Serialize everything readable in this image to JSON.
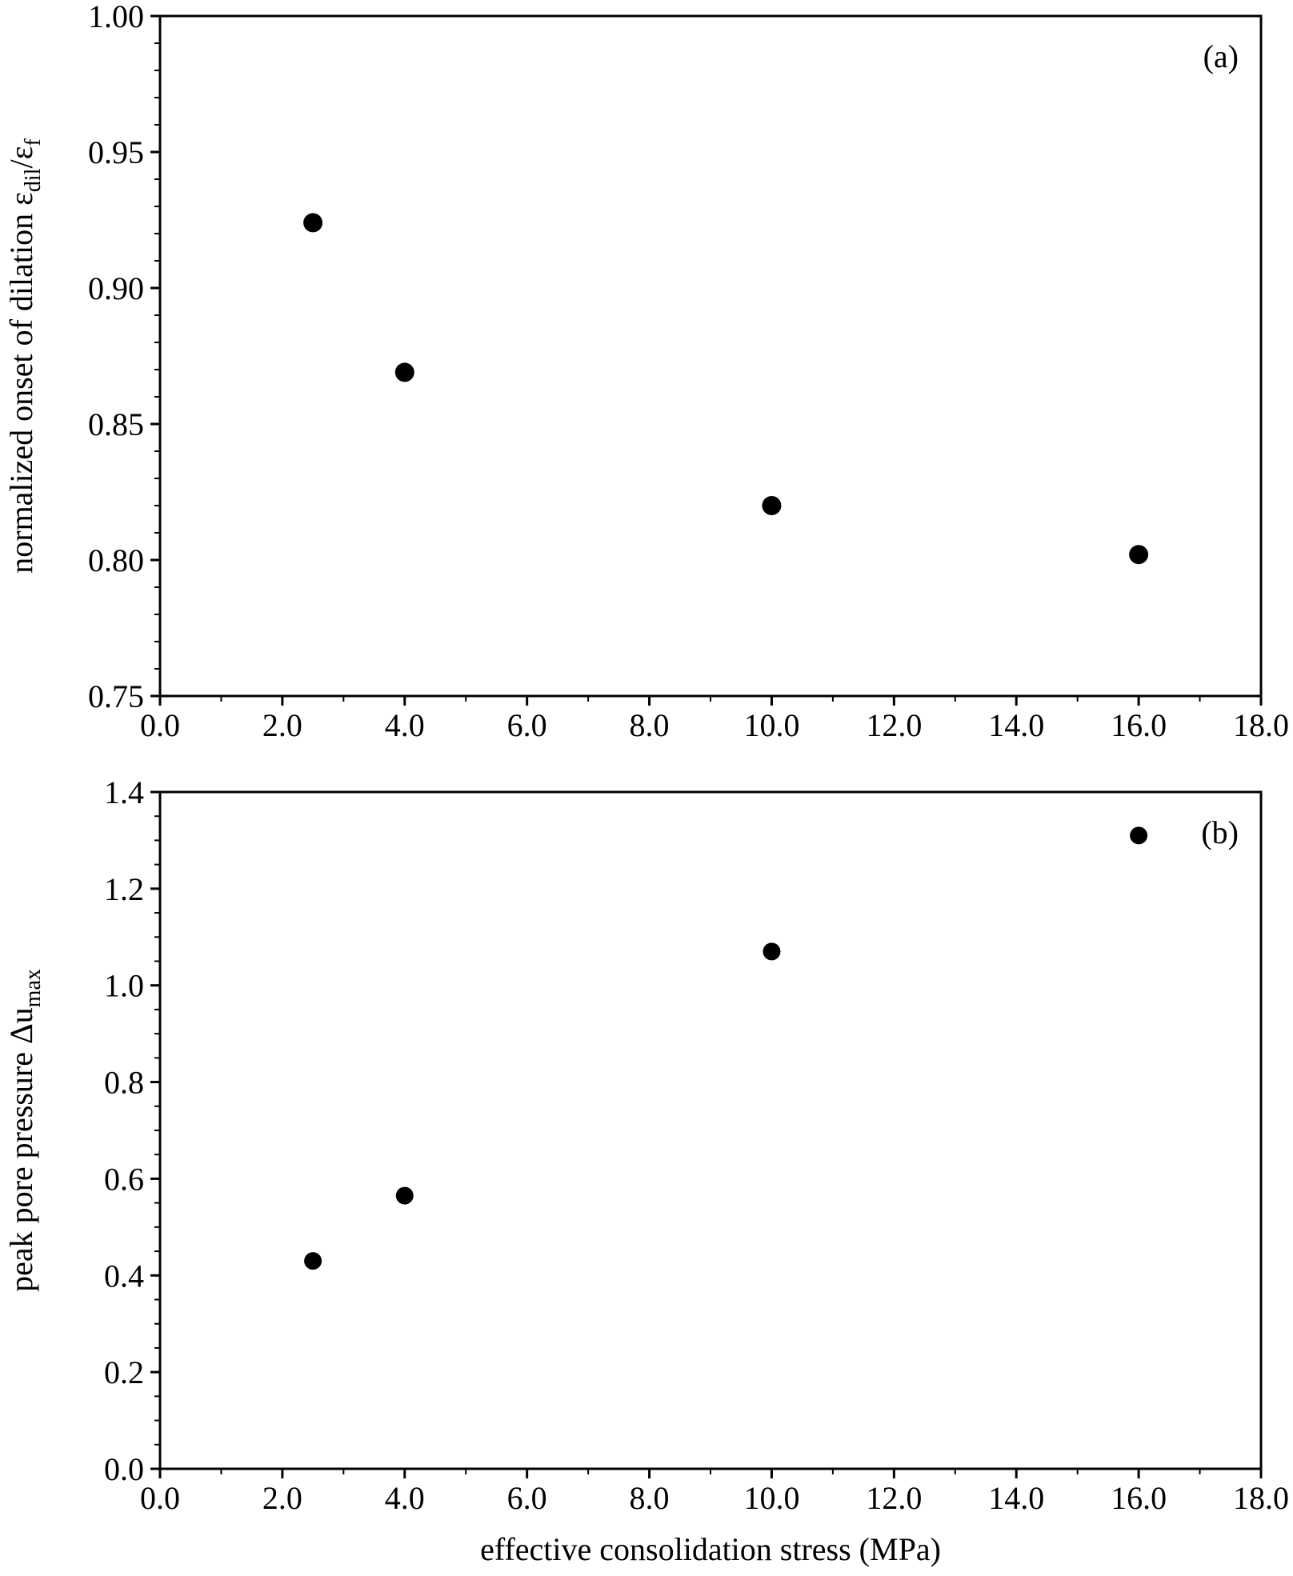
{
  "chart_data": [
    {
      "type": "scatter",
      "panel_label": "(a)",
      "ylabel_parts": {
        "main": "normalized onset of dilation ε",
        "sub1": "dil",
        "mid": "/ε",
        "sub2": "f"
      },
      "xlim": [
        0,
        18
      ],
      "ylim": [
        0.75,
        1.0
      ],
      "x_ticks": [
        0,
        2,
        4,
        6,
        8,
        10,
        12,
        14,
        16,
        18
      ],
      "x_tick_labels": [
        "0.0",
        "2.0",
        "4.0",
        "6.0",
        "8.0",
        "10.0",
        "12.0",
        "14.0",
        "16.0",
        "18.0"
      ],
      "y_ticks": [
        0.75,
        0.8,
        0.85,
        0.9,
        0.95,
        1.0
      ],
      "y_tick_labels": [
        "0.75",
        "0.80",
        "0.85",
        "0.90",
        "0.95",
        "1.00"
      ],
      "x_minor_step": 1,
      "y_minor_step": 0.01,
      "series": [
        {
          "x": [
            2.5,
            4.0,
            10.0,
            16.0
          ],
          "y": [
            0.924,
            0.869,
            0.82,
            0.802
          ]
        }
      ],
      "grid": false,
      "marker": "filled-circle",
      "marker_color": "#000000"
    },
    {
      "type": "scatter",
      "panel_label": "(b)",
      "ylabel_parts": {
        "main": "peak pore pressure Δu",
        "sub1": "max"
      },
      "xlabel": "effective consolidation stress (MPa)",
      "xlim": [
        0,
        18
      ],
      "ylim": [
        0,
        1.4
      ],
      "x_ticks": [
        0,
        2,
        4,
        6,
        8,
        10,
        12,
        14,
        16,
        18
      ],
      "x_tick_labels": [
        "0.0",
        "2.0",
        "4.0",
        "6.0",
        "8.0",
        "10.0",
        "12.0",
        "14.0",
        "16.0",
        "18.0"
      ],
      "y_ticks": [
        0,
        0.2,
        0.4,
        0.6,
        0.8,
        1.0,
        1.2,
        1.4
      ],
      "y_tick_labels": [
        "0.0",
        "0.2",
        "0.4",
        "0.6",
        "0.8",
        "1.0",
        "1.2",
        "1.4"
      ],
      "x_minor_step": 1,
      "y_minor_step": 0.05,
      "series": [
        {
          "x": [
            2.5,
            4.0,
            10.0,
            16.0
          ],
          "y": [
            0.43,
            0.565,
            1.07,
            1.31
          ]
        }
      ],
      "grid": false,
      "marker": "filled-circle",
      "marker_color": "#000000"
    }
  ]
}
